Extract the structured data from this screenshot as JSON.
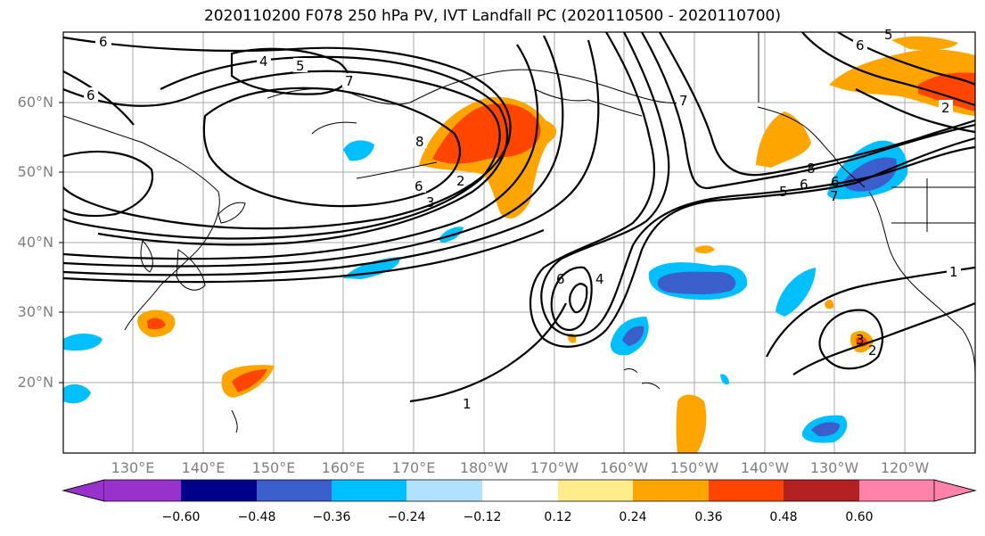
{
  "title": "2020110200 F078 250 hPa PV, IVT Landfall PC (2020110500 - 2020110700)",
  "lat_labels": [
    "60°N",
    "50°N",
    "40°N",
    "30°N",
    "20°N"
  ],
  "lon_labels": [
    "130°E",
    "140°E",
    "150°E",
    "160°E",
    "170°E",
    "180°W",
    "170°W",
    "160°W",
    "150°W",
    "140°W",
    "130°W",
    "120°W"
  ],
  "colorbar": {
    "colors": [
      "#9932cc",
      "#00008b",
      "#3a5fcd",
      "#00bfff",
      "#b0e2ff",
      "#ffffff",
      "#ffec8b",
      "#ffa500",
      "#ff4500",
      "#b22222",
      "#ff82ab"
    ],
    "tick_labels": [
      "−0.60",
      "−0.48",
      "−0.36",
      "−0.24",
      "−0.12",
      "0.12",
      "0.24",
      "0.36",
      "0.48",
      "0.60"
    ]
  },
  "contour_labels": [
    "6",
    "4",
    "5",
    "7",
    "6",
    "8",
    "6",
    "2",
    "3",
    "7",
    "6",
    "5",
    "8",
    "6",
    "5",
    "6",
    "7",
    "1",
    "1",
    "3",
    "2",
    "6",
    "4",
    "2"
  ],
  "colors": {
    "grid": "#aaaaaa",
    "coast": "#000000",
    "axis_label": "#7f7f7f"
  }
}
